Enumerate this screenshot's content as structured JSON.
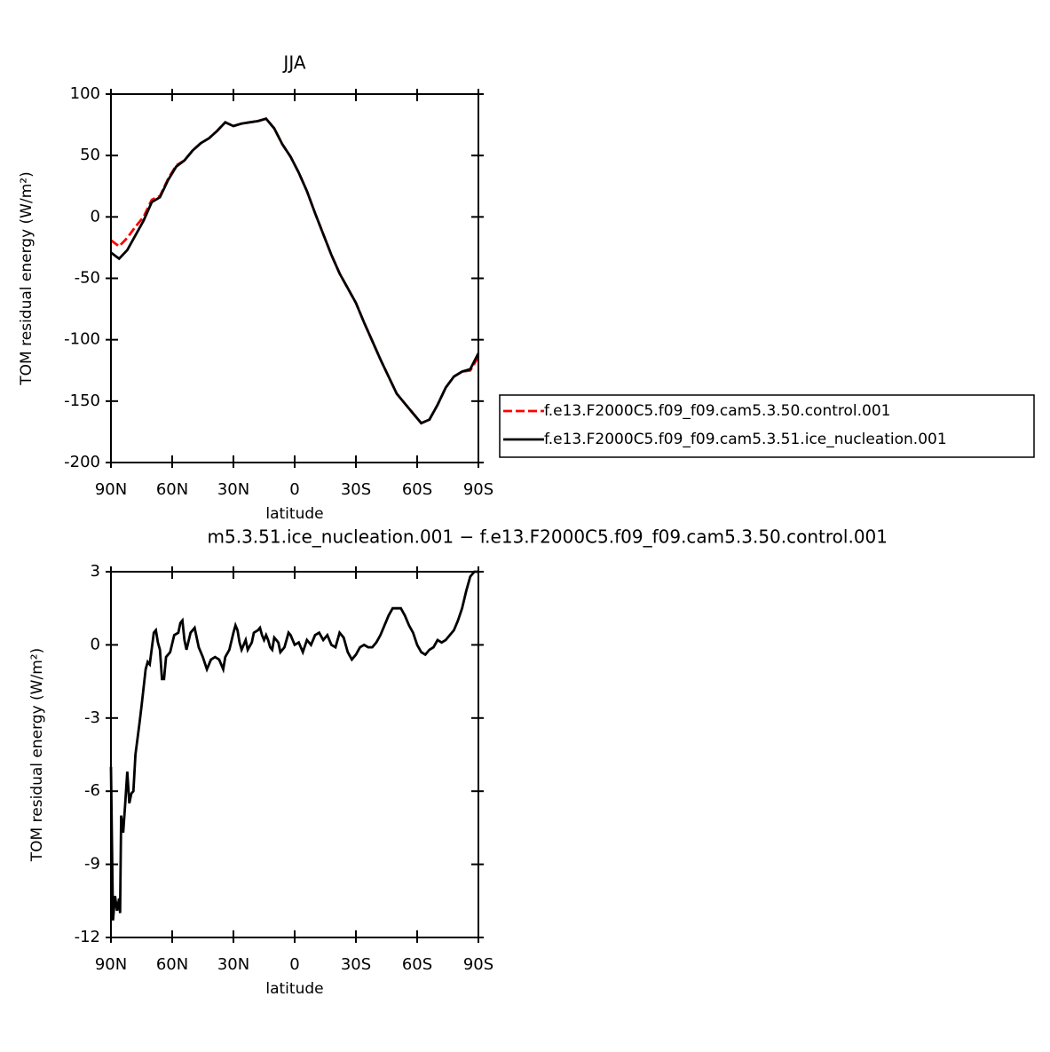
{
  "chart_data": [
    {
      "type": "line",
      "title": "JJA",
      "xlabel": "latitude",
      "ylabel": "TOM residual energy (W/m²)",
      "x": [
        90,
        86,
        82,
        78,
        74,
        70,
        66,
        62,
        58,
        54,
        50,
        46,
        42,
        38,
        34,
        30,
        26,
        22,
        18,
        14,
        10,
        6,
        2,
        -2,
        -6,
        -10,
        -14,
        -18,
        -22,
        -26,
        -30,
        -34,
        -38,
        -42,
        -46,
        -50,
        -54,
        -58,
        -62,
        -66,
        -70,
        -74,
        -78,
        -82,
        -86,
        -90
      ],
      "series": [
        {
          "name": "f.e13.F2000C5.f09_f09.cam5.3.50.control.001",
          "color": "#ff0000",
          "dash": "dashed",
          "values": [
            -19,
            -24,
            -17,
            -8,
            0,
            14,
            17,
            31,
            42,
            46,
            54,
            60,
            64,
            70,
            77,
            74,
            76,
            77,
            78,
            80,
            72,
            59,
            49,
            36,
            21,
            3,
            -14,
            -31,
            -46,
            -58,
            -70,
            -86,
            -101,
            -116,
            -130,
            -144,
            -152,
            -160,
            -168,
            -165,
            -153,
            -139,
            -130,
            -126,
            -125,
            -114
          ]
        },
        {
          "name": "f.e13.F2000C5.f09_f09.cam5.3.51.ice_nucleation.001",
          "color": "#000000",
          "dash": "solid",
          "values": [
            -29,
            -34,
            -27,
            -15,
            -3,
            12,
            16,
            30,
            41,
            46,
            54,
            60,
            64,
            70,
            77,
            74,
            76,
            77,
            78,
            80,
            72,
            59,
            49,
            36,
            21,
            3,
            -14,
            -31,
            -46,
            -58,
            -70,
            -86,
            -101,
            -116,
            -130,
            -144,
            -152,
            -160,
            -168,
            -165,
            -153,
            -139,
            -130,
            -126,
            -124,
            -111
          ]
        }
      ],
      "xlim": [
        90,
        -90
      ],
      "xticks": [
        {
          "value": 90,
          "label": "90N"
        },
        {
          "value": 60,
          "label": "60N"
        },
        {
          "value": 30,
          "label": "30N"
        },
        0,
        {
          "value": -30,
          "label": "30S"
        },
        {
          "value": -60,
          "label": "60S"
        },
        {
          "value": -90,
          "label": "90S"
        }
      ],
      "ylim": [
        -200,
        100
      ],
      "yticks": [
        -200,
        -150,
        -100,
        -50,
        0,
        50,
        100
      ],
      "legend": "right"
    },
    {
      "type": "line",
      "title": "m5.3.51.ice_nucleation.001 − f.e13.F2000C5.f09_f09.cam5.3.50.control.001",
      "xlabel": "latitude",
      "ylabel": "TOM residual energy (W/m²)",
      "x": [
        90,
        89,
        88,
        87,
        86,
        85.5,
        85,
        84,
        83,
        82,
        81,
        80,
        79,
        78,
        76,
        75,
        73,
        72,
        71,
        69,
        68,
        67,
        66,
        65,
        64,
        63,
        61,
        59,
        57,
        56,
        55,
        54,
        53,
        51,
        49,
        48,
        47,
        45,
        43,
        41,
        39,
        37,
        35,
        34,
        32,
        30,
        29,
        28,
        27,
        26,
        25,
        24,
        23,
        21,
        20,
        18,
        17,
        16,
        15,
        14,
        13,
        12,
        11,
        10,
        9,
        8,
        7,
        5,
        3,
        2,
        0,
        -2,
        -4,
        -6,
        -8,
        -10,
        -12,
        -14,
        -16,
        -18,
        -20,
        -22,
        -24,
        -26,
        -28,
        -30,
        -32,
        -34,
        -36,
        -38,
        -40,
        -42,
        -44,
        -46,
        -48,
        -50,
        -52,
        -54,
        -56,
        -58,
        -60,
        -62,
        -64,
        -66,
        -68,
        -70,
        -72,
        -74,
        -76,
        -78,
        -80,
        -82,
        -84,
        -86,
        -88,
        -90
      ],
      "series": [
        {
          "name": null,
          "color": "#000000",
          "dash": "solid",
          "values": [
            -5,
            -11.3,
            -10.3,
            -10.9,
            -10.4,
            -11,
            -7,
            -7.7,
            -6.5,
            -5.2,
            -6.5,
            -6.1,
            -6,
            -4.5,
            -3.2,
            -2.5,
            -1,
            -0.7,
            -0.8,
            0.5,
            0.6,
            0.1,
            -0.2,
            -1.4,
            -1.4,
            -0.5,
            -0.3,
            0.4,
            0.5,
            0.9,
            1,
            0.2,
            -0.2,
            0.5,
            0.7,
            0.3,
            -0.1,
            -0.5,
            -1,
            -0.6,
            -0.5,
            -0.6,
            -1,
            -0.5,
            -0.2,
            0.5,
            0.8,
            0.6,
            0.1,
            -0.2,
            0,
            0.2,
            -0.2,
            0.1,
            0.5,
            0.6,
            0.7,
            0.4,
            0.2,
            0.4,
            0.2,
            -0.1,
            -0.2,
            0.3,
            0.2,
            0.1,
            -0.3,
            -0.1,
            0.5,
            0.4,
            0,
            0.1,
            -0.3,
            0.2,
            0,
            0.4,
            0.5,
            0.2,
            0.4,
            0,
            -0.1,
            0.5,
            0.3,
            -0.3,
            -0.6,
            -0.4,
            -0.1,
            0,
            -0.1,
            -0.1,
            0.1,
            0.4,
            0.8,
            1.2,
            1.5,
            1.5,
            1.5,
            1.2,
            0.8,
            0.5,
            0,
            -0.3,
            -0.4,
            -0.2,
            -0.1,
            0.2,
            0.1,
            0.2,
            0.4,
            0.6,
            1,
            1.5,
            2.2,
            2.8,
            3,
            3
          ]
        }
      ],
      "xlim": [
        90,
        -90
      ],
      "xticks": [
        {
          "value": 90,
          "label": "90N"
        },
        {
          "value": 60,
          "label": "60N"
        },
        {
          "value": 30,
          "label": "30N"
        },
        0,
        {
          "value": -30,
          "label": "30S"
        },
        {
          "value": -60,
          "label": "60S"
        },
        {
          "value": -90,
          "label": "90S"
        }
      ],
      "ylim": [
        -12,
        3
      ],
      "yticks": [
        -12,
        -9,
        -6,
        -3,
        0,
        3
      ]
    }
  ]
}
